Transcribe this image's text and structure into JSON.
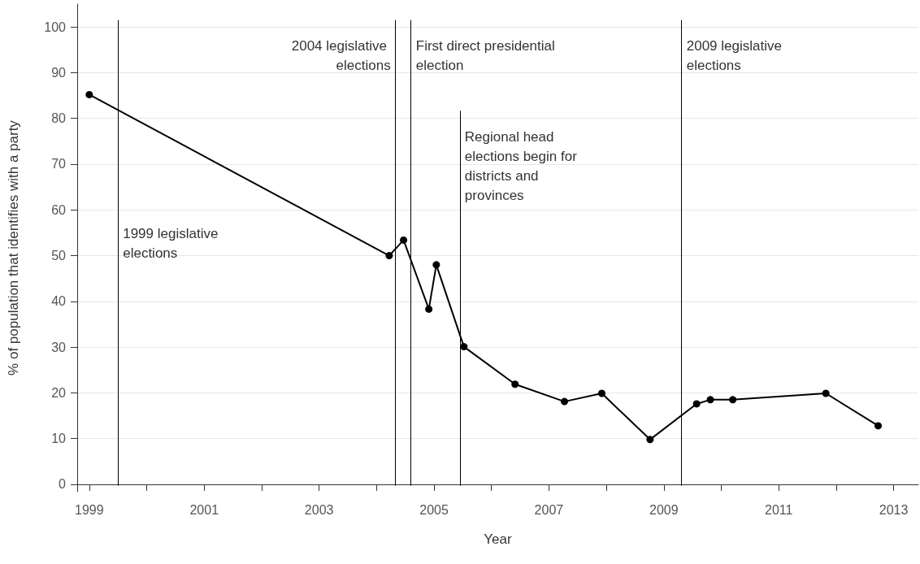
{
  "chart_data": {
    "type": "line",
    "xlabel": "Year",
    "ylabel": "% of population that identifies with a party",
    "x": [
      1999.0,
      2004.22,
      2004.47,
      2004.91,
      2005.04,
      2005.52,
      2006.41,
      2007.27,
      2007.92,
      2008.76,
      2009.57,
      2009.81,
      2010.2,
      2011.82,
      2012.73
    ],
    "series": [
      {
        "color": "#000000",
        "values": [
          85.2,
          50.0,
          53.4,
          38.3,
          48.0,
          30.1,
          21.9,
          18.1,
          19.9,
          9.8,
          17.6,
          18.5,
          18.5,
          19.9,
          12.8
        ]
      }
    ],
    "marker": "circle",
    "line_style": "solid",
    "grid": "y",
    "xlim": [
      1998.79,
      2013.43
    ],
    "xticks": [
      1999,
      {
        "value": 2000,
        "label": null
      },
      2001,
      {
        "value": 2002,
        "label": null
      },
      2003,
      {
        "value": 2004,
        "label": null
      },
      2005,
      {
        "value": 2006,
        "label": null
      },
      2007,
      {
        "value": 2008,
        "label": null
      },
      2009,
      {
        "value": 2010,
        "label": null
      },
      2011,
      {
        "value": 2012,
        "label": null
      },
      2013
    ],
    "ylim": [
      -1.6,
      105
    ],
    "yticks": [
      0,
      10,
      20,
      30,
      40,
      50,
      60,
      70,
      80,
      90,
      100
    ],
    "ref_lines": [
      {
        "axis": "x",
        "value": 1999.5,
        "label": "1999 legislative elections",
        "color": "#000000"
      },
      {
        "axis": "x",
        "value": 2004.33,
        "label": "2004 legislative elections",
        "color": "#000000"
      },
      {
        "axis": "x",
        "value": 2004.6,
        "label": "First direct presidential election",
        "color": "#000000"
      },
      {
        "axis": "x",
        "value": 2005.45,
        "label": "Regional head elections begin for districts and provinces",
        "color": "#000000"
      },
      {
        "axis": "x",
        "value": 2009.31,
        "label": "2009 legislative elections",
        "color": "#000000"
      }
    ]
  }
}
